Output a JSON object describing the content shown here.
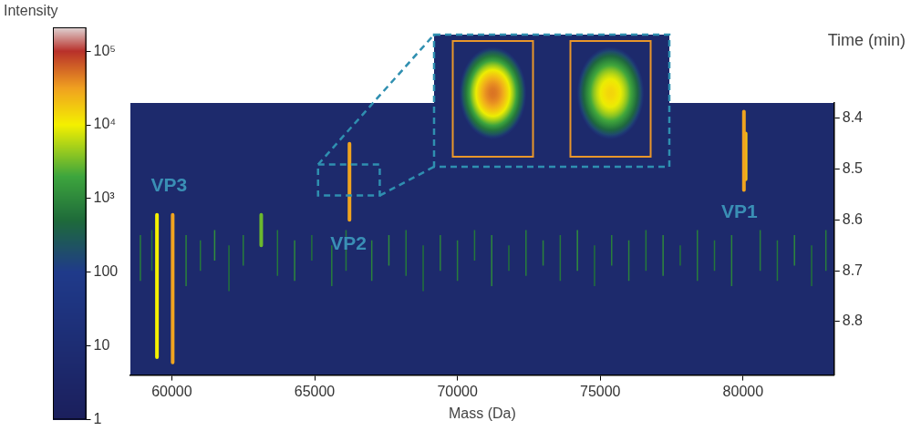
{
  "chart_data": {
    "type": "heatmap",
    "x_label": "Mass (Da)",
    "y_label": "Time (min)",
    "xlim": [
      58550,
      83190
    ],
    "xticks": [
      60000,
      65000,
      70000,
      75000,
      80000
    ],
    "ylim": [
      8.905,
      8.37
    ],
    "yticks": [
      8.4,
      8.5,
      8.6,
      8.7,
      8.8
    ],
    "grid": false,
    "streaks": [
      {
        "mass": 80030,
        "time_start": 8.387,
        "time_end": 8.541,
        "intensity": 30000
      },
      {
        "mass": 80090,
        "time_start": 8.43,
        "time_end": 8.52,
        "intensity": 20000
      },
      {
        "mass": 66220,
        "time_start": 8.45,
        "time_end": 8.6,
        "intensity": 30000
      },
      {
        "mass": 59480,
        "time_start": 8.59,
        "time_end": 8.87,
        "intensity": 10000
      },
      {
        "mass": 60030,
        "time_start": 8.59,
        "time_end": 8.88,
        "intensity": 30000
      },
      {
        "mass": 63130,
        "time_start": 8.59,
        "time_end": 8.65,
        "intensity": 3000
      }
    ],
    "noise_streaks": [
      [
        58900,
        8.63,
        8.72,
        800
      ],
      [
        59300,
        8.62,
        8.7,
        600
      ],
      [
        60500,
        8.63,
        8.73,
        900
      ],
      [
        61000,
        8.64,
        8.7,
        700
      ],
      [
        61500,
        8.62,
        8.68,
        1200
      ],
      [
        62000,
        8.65,
        8.74,
        600
      ],
      [
        62500,
        8.63,
        8.69,
        800
      ],
      [
        63700,
        8.62,
        8.71,
        700
      ],
      [
        64300,
        8.64,
        8.72,
        1000
      ],
      [
        64900,
        8.63,
        8.68,
        600
      ],
      [
        65600,
        8.65,
        8.73,
        800
      ],
      [
        66100,
        8.62,
        8.7,
        700
      ],
      [
        67000,
        8.64,
        8.72,
        900
      ],
      [
        67600,
        8.63,
        8.69,
        1100
      ],
      [
        68200,
        8.62,
        8.71,
        700
      ],
      [
        68800,
        8.65,
        8.74,
        600
      ],
      [
        69400,
        8.63,
        8.7,
        900
      ],
      [
        70000,
        8.64,
        8.72,
        800
      ],
      [
        70600,
        8.62,
        8.68,
        700
      ],
      [
        71200,
        8.63,
        8.73,
        1000
      ],
      [
        71800,
        8.65,
        8.7,
        600
      ],
      [
        72400,
        8.62,
        8.71,
        800
      ],
      [
        73000,
        8.64,
        8.69,
        900
      ],
      [
        73600,
        8.63,
        8.72,
        700
      ],
      [
        74200,
        8.62,
        8.7,
        1100
      ],
      [
        74800,
        8.65,
        8.73,
        600
      ],
      [
        75400,
        8.63,
        8.69,
        800
      ],
      [
        76000,
        8.64,
        8.72,
        900
      ],
      [
        76600,
        8.62,
        8.7,
        700
      ],
      [
        77200,
        8.63,
        8.71,
        1000
      ],
      [
        77800,
        8.65,
        8.69,
        600
      ],
      [
        78400,
        8.62,
        8.72,
        800
      ],
      [
        79000,
        8.64,
        8.7,
        700
      ],
      [
        79600,
        8.63,
        8.73,
        900
      ],
      [
        80600,
        8.62,
        8.7,
        800
      ],
      [
        81200,
        8.64,
        8.72,
        700
      ],
      [
        81800,
        8.63,
        8.69,
        1000
      ],
      [
        82400,
        8.65,
        8.73,
        600
      ],
      [
        82900,
        8.62,
        8.7,
        800
      ]
    ],
    "annotations": [
      {
        "text": "VP3",
        "x": 59900,
        "y": 8.534
      },
      {
        "text": "VP2",
        "x": 66180,
        "y": 8.648
      },
      {
        "text": "VP1",
        "x": 79870,
        "y": 8.586
      }
    ],
    "inset": {
      "xlim": [
        65120,
        67280
      ],
      "ylim": [
        8.552,
        8.491
      ],
      "peaks": [
        {
          "intensity": 50000
        },
        {
          "intensity": 15000
        }
      ]
    },
    "colorbar": {
      "title": "Intensity",
      "log": true,
      "range": [
        1,
        211000
      ],
      "ticks": [
        1,
        10,
        100,
        {
          "value": 1000,
          "label": "10³"
        },
        {
          "value": 10000,
          "label": "10⁴"
        },
        {
          "value": 100000,
          "label": "10⁵"
        }
      ]
    }
  }
}
